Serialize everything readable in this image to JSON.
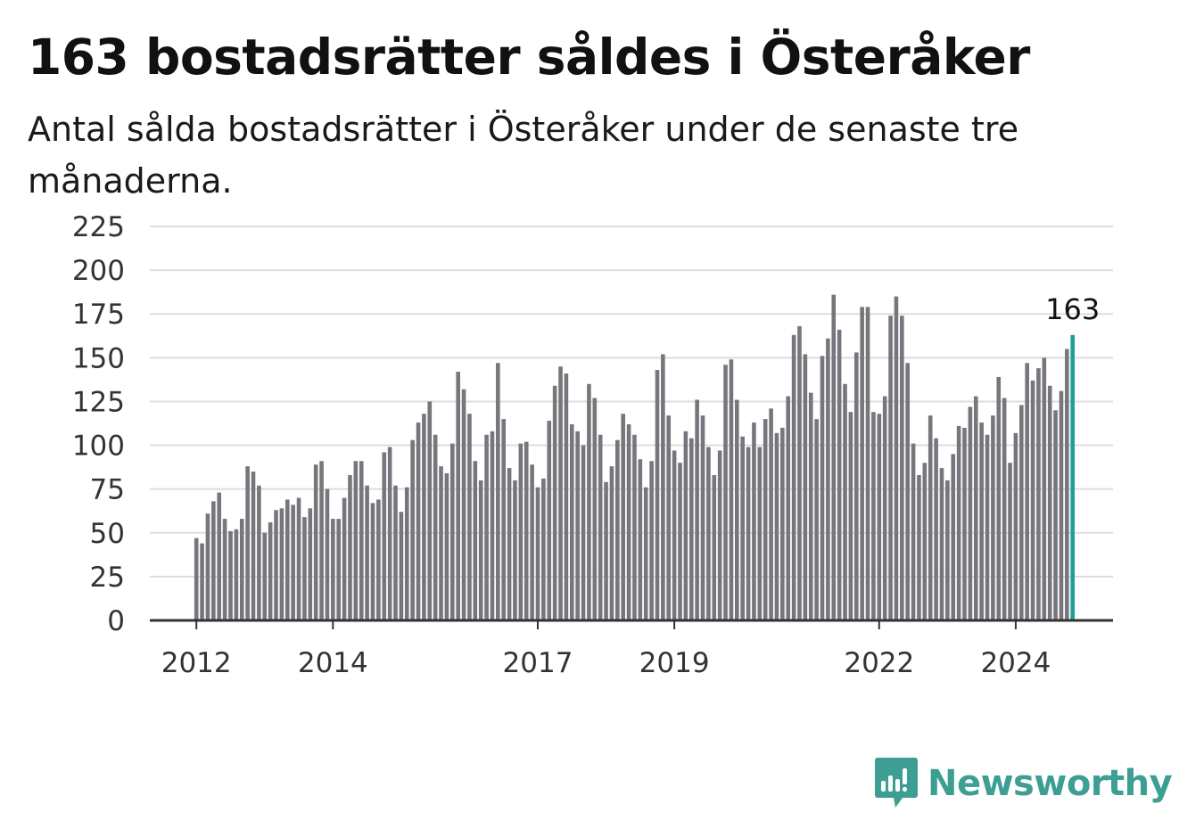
{
  "title": "163 bostadsrätter såldes i Österåker",
  "subtitle": "Antal sålda bostadsrätter i Österåker under de senaste tre månaderna.",
  "brand": {
    "name": "Newsworthy",
    "color": "#3d9e94",
    "icon": "newsworthy-chart-bubble-icon"
  },
  "colors": {
    "bar": "#77767c",
    "highlight": "#1f9e9a",
    "grid": "#dddddd",
    "axis": "#333333"
  },
  "chart_data": {
    "type": "bar",
    "title": "",
    "xlabel": "",
    "ylabel": "",
    "ylim": [
      0,
      225
    ],
    "yticks": [
      "0",
      "25",
      "50",
      "75",
      "100",
      "125",
      "150",
      "175",
      "200",
      "225"
    ],
    "xticks": [
      {
        "label": "2012",
        "month": "2012-01"
      },
      {
        "label": "2014",
        "month": "2014-01"
      },
      {
        "label": "2017",
        "month": "2017-01"
      },
      {
        "label": "2019",
        "month": "2019-01"
      },
      {
        "label": "2022",
        "month": "2022-01"
      },
      {
        "label": "2024",
        "month": "2024-01"
      }
    ],
    "grid": true,
    "first_month": "2012-01",
    "highlight_last": true,
    "annotation": "163",
    "values": [
      47,
      44,
      61,
      68,
      73,
      58,
      51,
      52,
      58,
      88,
      85,
      77,
      50,
      56,
      63,
      64,
      69,
      66,
      70,
      59,
      64,
      89,
      91,
      75,
      58,
      58,
      70,
      83,
      91,
      91,
      77,
      67,
      69,
      96,
      99,
      77,
      62,
      76,
      103,
      113,
      118,
      125,
      106,
      88,
      84,
      101,
      142,
      132,
      118,
      91,
      80,
      106,
      108,
      147,
      115,
      87,
      80,
      101,
      102,
      89,
      76,
      81,
      114,
      134,
      145,
      141,
      112,
      108,
      100,
      135,
      127,
      106,
      79,
      88,
      103,
      118,
      112,
      106,
      92,
      76,
      91,
      143,
      152,
      117,
      97,
      90,
      108,
      104,
      126,
      117,
      99,
      83,
      97,
      146,
      149,
      126,
      105,
      99,
      113,
      99,
      115,
      121,
      107,
      110,
      128,
      163,
      168,
      152,
      130,
      115,
      151,
      161,
      186,
      166,
      135,
      119,
      153,
      179,
      179,
      119,
      118,
      128,
      174,
      185,
      174,
      147,
      101,
      83,
      90,
      117,
      104,
      87,
      80,
      95,
      111,
      110,
      122,
      128,
      113,
      106,
      117,
      139,
      127,
      90,
      107,
      123,
      147,
      137,
      144,
      150,
      134,
      120,
      131,
      155,
      163
    ]
  }
}
